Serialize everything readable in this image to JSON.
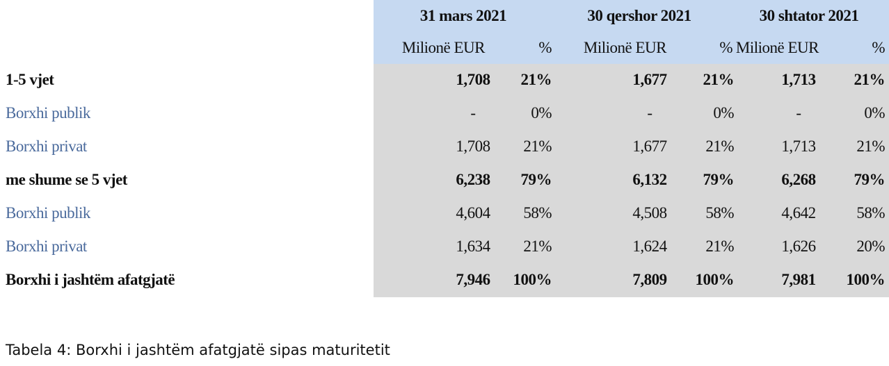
{
  "table": {
    "groups": [
      "31 mars 2021",
      "30 qershor 2021",
      "30 shtator 2021"
    ],
    "subheaders": [
      "Milionë EUR",
      "%",
      "Milionë EUR",
      "%",
      "Milionë EUR",
      "%"
    ],
    "rows": [
      {
        "label": "1-5 vjet",
        "bold": true,
        "cells": [
          "1,708",
          "21%",
          "1,677",
          "21%",
          "1,713",
          "21%"
        ]
      },
      {
        "label": "Borxhi publik",
        "bold": false,
        "cells": [
          "-",
          "0%",
          "-",
          "0%",
          "-",
          "0%"
        ]
      },
      {
        "label": "Borxhi privat",
        "bold": false,
        "cells": [
          "1,708",
          "21%",
          "1,677",
          "21%",
          "1,713",
          "21%"
        ]
      },
      {
        "label": "me shume se 5 vjet",
        "bold": true,
        "cells": [
          "6,238",
          "79%",
          "6,132",
          "79%",
          "6,268",
          "79%"
        ]
      },
      {
        "label": "Borxhi publik",
        "bold": false,
        "cells": [
          "4,604",
          "58%",
          "4,508",
          "58%",
          "4,642",
          "58%"
        ]
      },
      {
        "label": "Borxhi privat",
        "bold": false,
        "cells": [
          "1,634",
          "21%",
          "1,624",
          "21%",
          "1,626",
          "20%"
        ]
      },
      {
        "label": "Borxhi i jashtëm afatgjatë",
        "bold": true,
        "cells": [
          "7,946",
          "100%",
          "7,809",
          "100%",
          "7,981",
          "100%"
        ]
      }
    ]
  },
  "caption": "Tabela 4: Borxhi i jashtëm afatgjatë sipas maturitetit"
}
